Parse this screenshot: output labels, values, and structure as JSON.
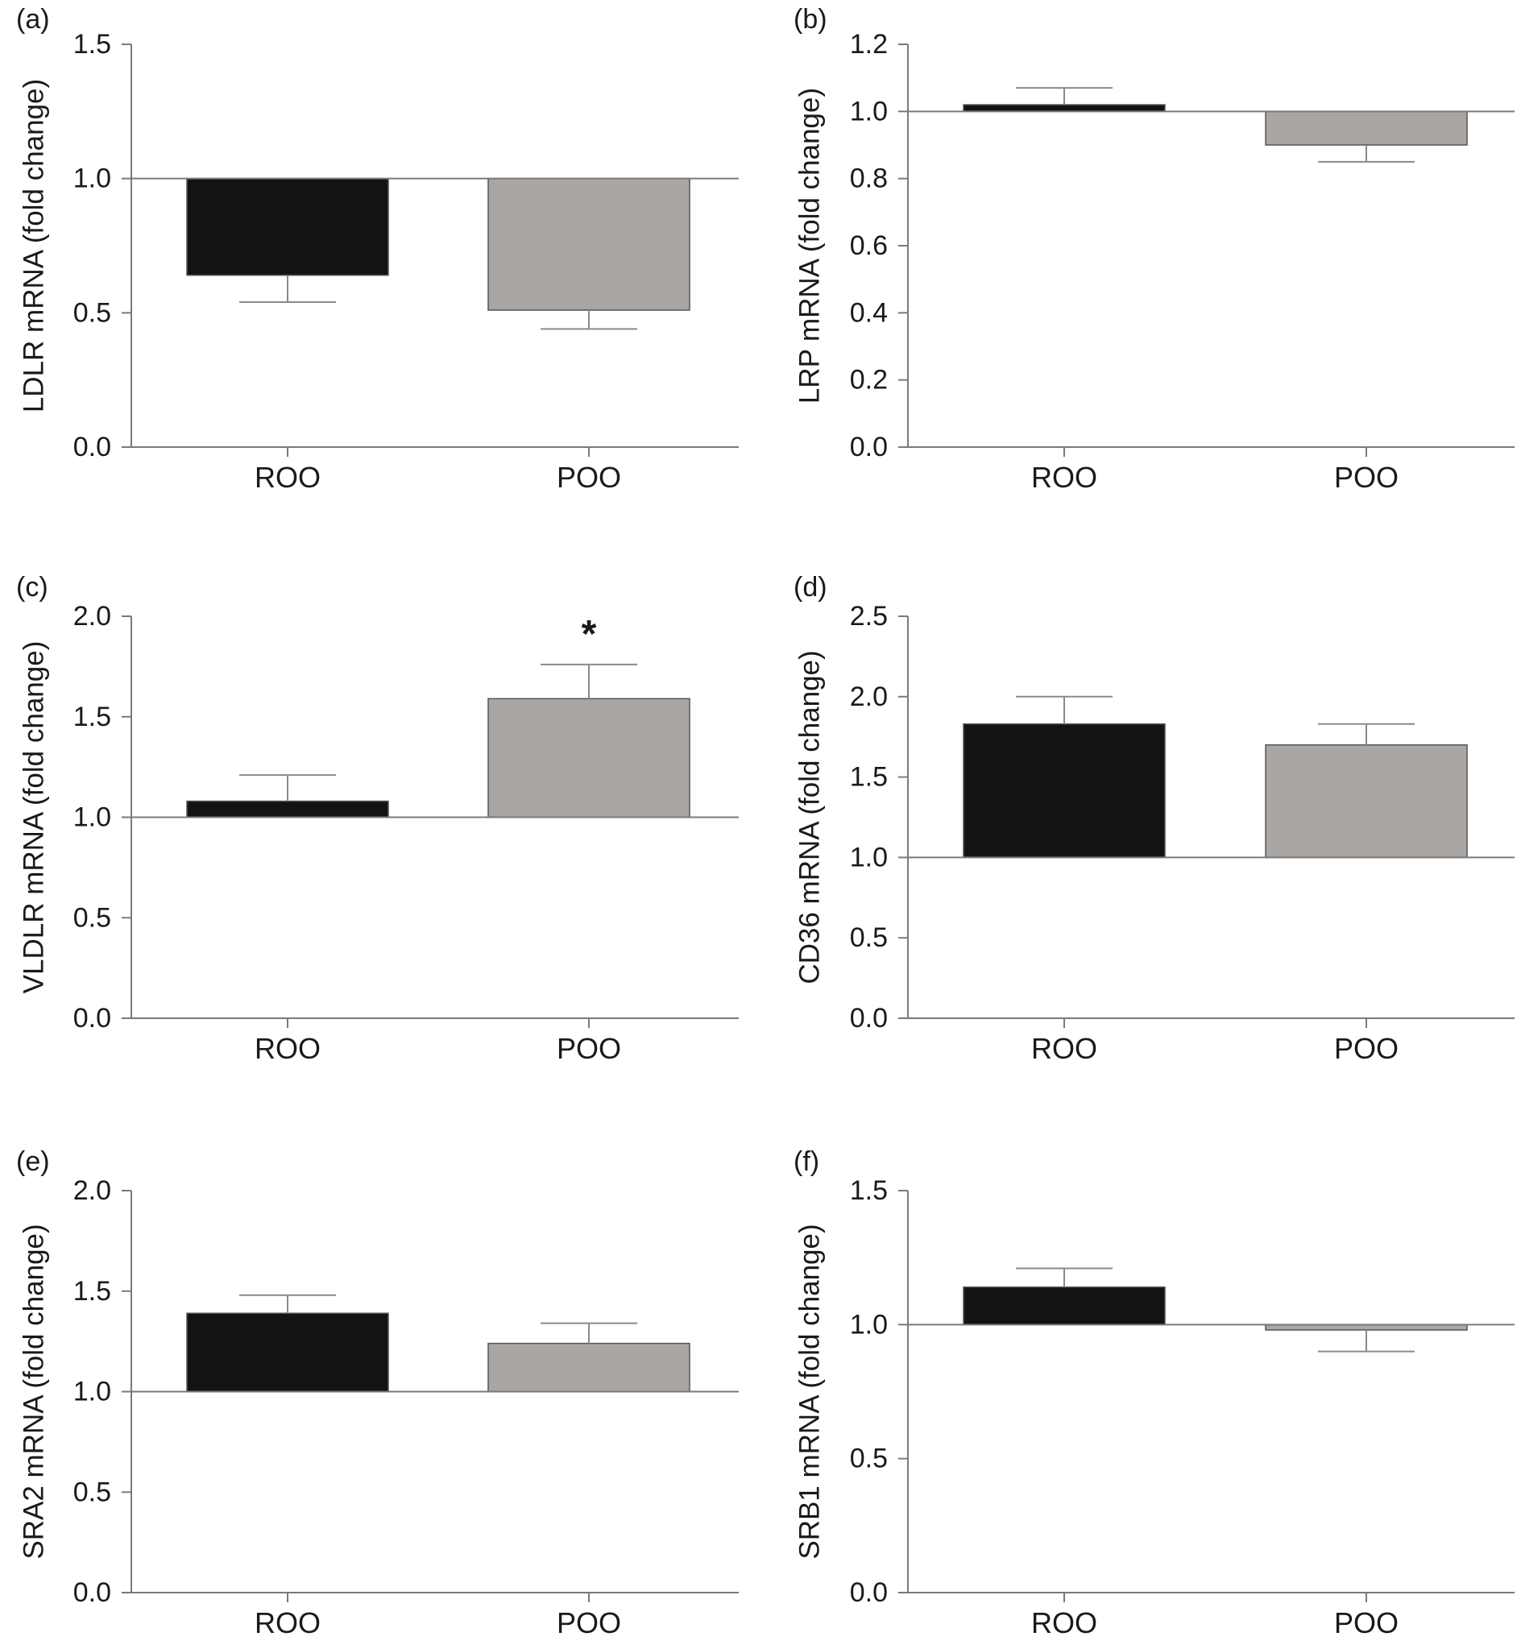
{
  "colors": {
    "ROO": "#121414",
    "POO": "#a9a6a3",
    "axis": "#7a7a7a",
    "errorbar": "#8a8a8a"
  },
  "chart_data": [
    {
      "type": "bar",
      "panel_label": "(a)",
      "ylabel": "LDLR mRNA (fold change)",
      "categories": [
        "ROO",
        "POO"
      ],
      "baseline": 1.0,
      "values": [
        0.64,
        0.51
      ],
      "errors": [
        0.1,
        0.07
      ],
      "ylim": [
        0,
        1.5
      ],
      "yticks": [
        "0.0",
        "0.5",
        "1.0",
        "1.5"
      ],
      "significance": [
        "",
        ""
      ]
    },
    {
      "type": "bar",
      "panel_label": "(b)",
      "ylabel": "LRP mRNA (fold change)",
      "categories": [
        "ROO",
        "POO"
      ],
      "baseline": 1.0,
      "values": [
        1.02,
        0.9
      ],
      "errors": [
        0.05,
        0.05
      ],
      "ylim": [
        0,
        1.2
      ],
      "yticks": [
        "0.0",
        "0.2",
        "0.4",
        "0.6",
        "0.8",
        "1.0",
        "1.2"
      ],
      "significance": [
        "",
        ""
      ]
    },
    {
      "type": "bar",
      "panel_label": "(c)",
      "ylabel": "VLDLR mRNA (fold change)",
      "categories": [
        "ROO",
        "POO"
      ],
      "baseline": 1.0,
      "values": [
        1.08,
        1.59
      ],
      "errors": [
        0.13,
        0.17
      ],
      "ylim": [
        0,
        2.0
      ],
      "yticks": [
        "0.0",
        "0.5",
        "1.0",
        "1.5",
        "2.0"
      ],
      "significance": [
        "",
        "*"
      ]
    },
    {
      "type": "bar",
      "panel_label": "(d)",
      "ylabel": "CD36 mRNA (fold change)",
      "categories": [
        "ROO",
        "POO"
      ],
      "baseline": 1.0,
      "values": [
        1.83,
        1.7
      ],
      "errors": [
        0.17,
        0.13
      ],
      "ylim": [
        0,
        2.5
      ],
      "yticks": [
        "0.0",
        "0.5",
        "1.0",
        "1.5",
        "2.0",
        "2.5"
      ],
      "significance": [
        "",
        ""
      ]
    },
    {
      "type": "bar",
      "panel_label": "(e)",
      "ylabel": "SRA2 mRNA (fold change)",
      "categories": [
        "ROO",
        "POO"
      ],
      "baseline": 1.0,
      "values": [
        1.39,
        1.24
      ],
      "errors": [
        0.09,
        0.1
      ],
      "ylim": [
        0,
        2.0
      ],
      "yticks": [
        "0.0",
        "0.5",
        "1.0",
        "1.5",
        "2.0"
      ],
      "significance": [
        "",
        ""
      ]
    },
    {
      "type": "bar",
      "panel_label": "(f)",
      "ylabel": "SRB1 mRNA (fold change)",
      "categories": [
        "ROO",
        "POO"
      ],
      "baseline": 1.0,
      "values": [
        1.14,
        0.98
      ],
      "errors": [
        0.07,
        0.08
      ],
      "ylim": [
        0,
        1.5
      ],
      "yticks": [
        "0.0",
        "0.5",
        "1.0",
        "1.5"
      ],
      "significance": [
        "",
        ""
      ]
    }
  ]
}
